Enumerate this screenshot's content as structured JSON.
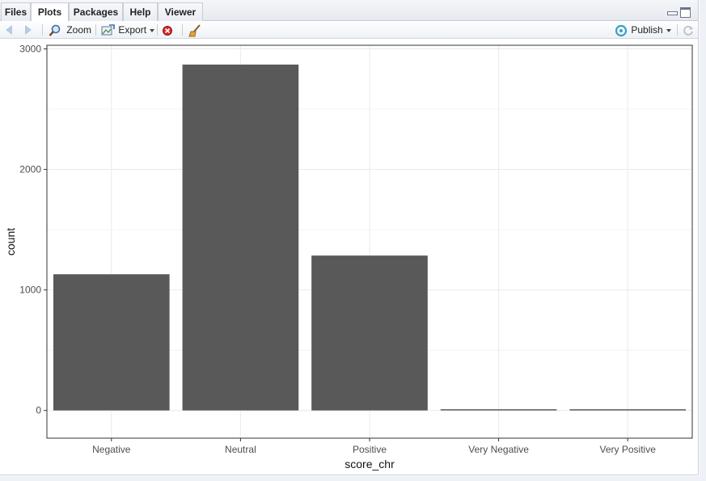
{
  "tabs": [
    {
      "label": "Files",
      "active": false
    },
    {
      "label": "Plots",
      "active": true
    },
    {
      "label": "Packages",
      "active": false
    },
    {
      "label": "Help",
      "active": false
    },
    {
      "label": "Viewer",
      "active": false
    }
  ],
  "toolbar": {
    "zoom_label": "Zoom",
    "export_label": "Export",
    "publish_label": "Publish"
  },
  "chart_data": {
    "type": "bar",
    "categories": [
      "Negative",
      "Neutral",
      "Positive",
      "Very Negative",
      "Very Positive"
    ],
    "values": [
      1130,
      2870,
      1285,
      10,
      10
    ],
    "xlabel": "score_chr",
    "ylabel": "count",
    "ylim": [
      -230,
      3030
    ],
    "yticks": [
      0,
      1000,
      2000,
      3000
    ],
    "grid": true,
    "bar_color": "#595959",
    "grid_color": "#ebebeb"
  }
}
